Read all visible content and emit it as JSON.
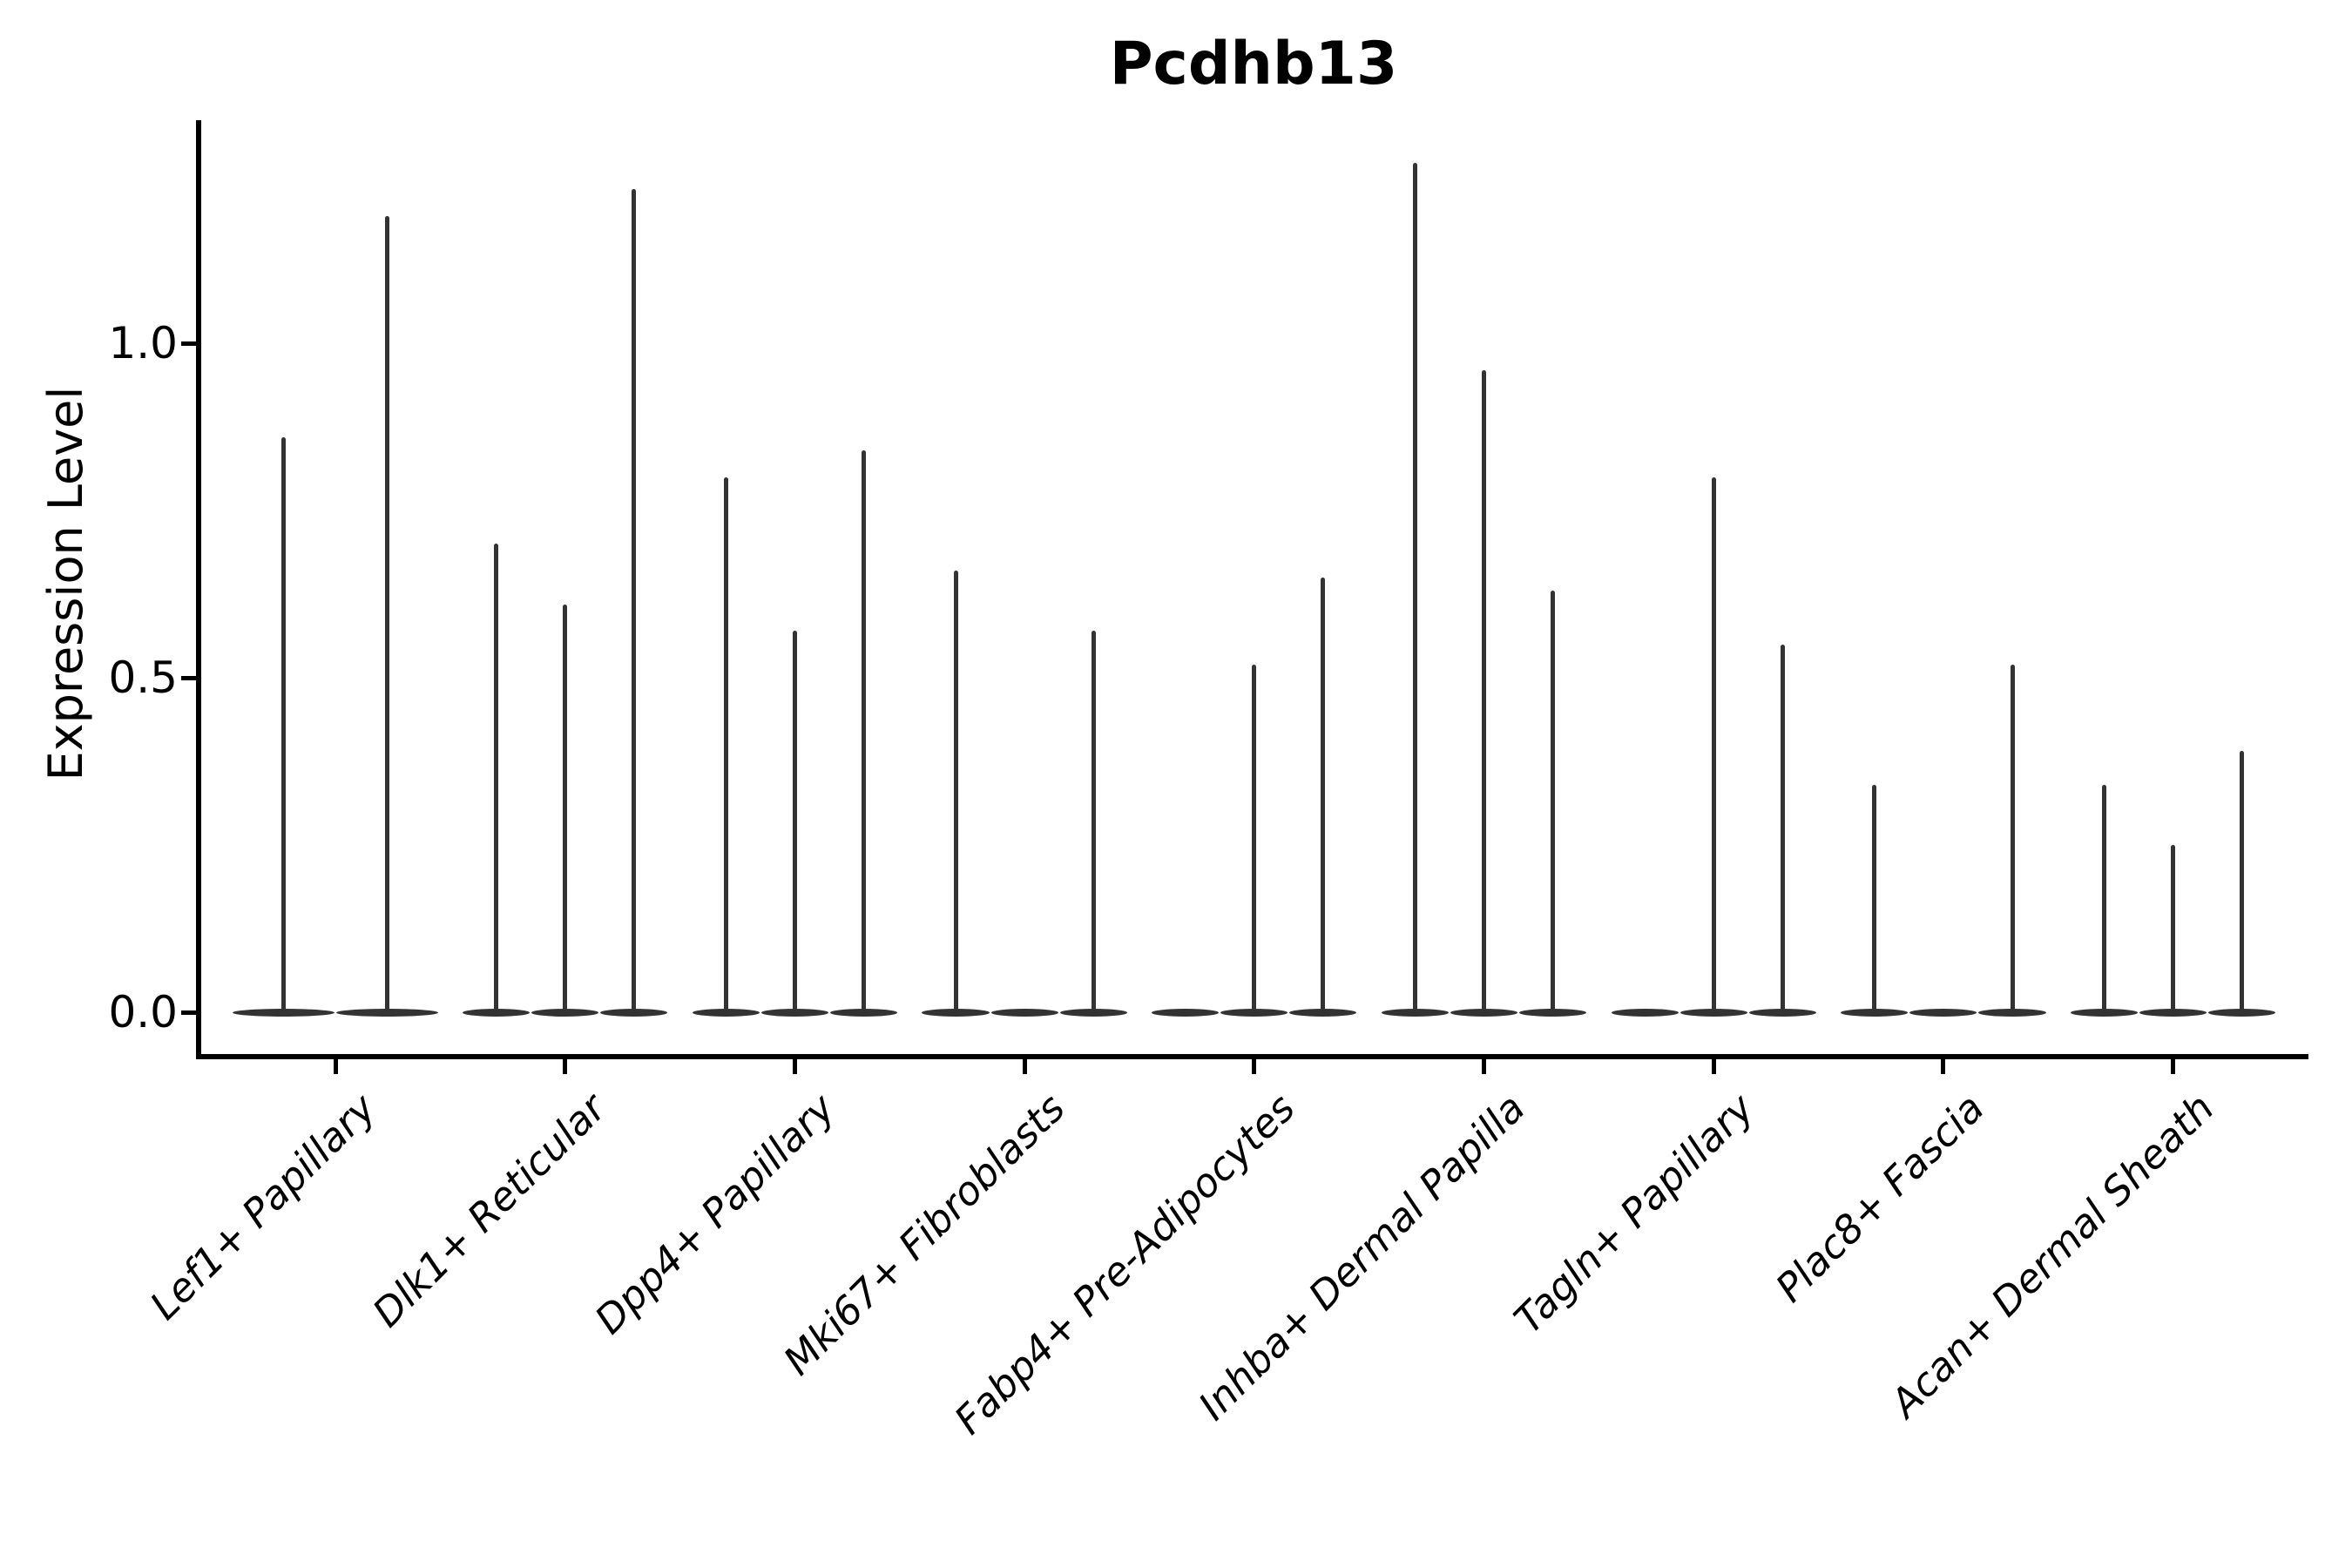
{
  "colors": {
    "background": "#ffffff",
    "axis": "#000000",
    "text": "#000000",
    "violin": "#333333"
  },
  "chart_data": {
    "type": "violin",
    "title": "Pcdhb13",
    "ylabel": "Expression Level",
    "xlabel": "",
    "grid": false,
    "legend_position": "none",
    "ylim": [
      -0.06,
      1.33
    ],
    "ytick_values": [
      0.0,
      0.5,
      1.0
    ],
    "ytick_labels": [
      "0.0",
      "0.5",
      "1.0"
    ],
    "description": "Violin plot of Pcdhb13 expression; each cell-type category contains up to 3 thin violins (flat base at 0 with a narrow spike to the maximum expression value).",
    "categories": [
      {
        "label": "Lef1+ Papillary",
        "n_slots": 2,
        "violins": [
          {
            "slot": 0,
            "max": 0.86
          },
          {
            "slot": 1,
            "max": 1.19
          }
        ]
      },
      {
        "label": "Dlk1+ Reticular",
        "n_slots": 3,
        "violins": [
          {
            "slot": 0,
            "max": 0.7
          },
          {
            "slot": 1,
            "max": 0.61
          },
          {
            "slot": 2,
            "max": 1.23
          }
        ]
      },
      {
        "label": "Dpp4+ Papillary",
        "n_slots": 3,
        "violins": [
          {
            "slot": 0,
            "max": 0.8
          },
          {
            "slot": 1,
            "max": 0.57
          },
          {
            "slot": 2,
            "max": 0.84
          }
        ]
      },
      {
        "label": "Mki67+ Fibroblasts",
        "n_slots": 3,
        "violins": [
          {
            "slot": 0,
            "max": 0.66
          },
          {
            "slot": 1,
            "max": 0.0
          },
          {
            "slot": 2,
            "max": 0.57
          }
        ]
      },
      {
        "label": "Fabp4+ Pre-Adipocytes",
        "n_slots": 3,
        "violins": [
          {
            "slot": 0,
            "max": 0.0
          },
          {
            "slot": 1,
            "max": 0.52
          },
          {
            "slot": 2,
            "max": 0.65
          }
        ]
      },
      {
        "label": "Inhba+ Dermal Papilla",
        "n_slots": 3,
        "violins": [
          {
            "slot": 0,
            "max": 1.27
          },
          {
            "slot": 1,
            "max": 0.96
          },
          {
            "slot": 2,
            "max": 0.63
          }
        ]
      },
      {
        "label": "Tagln+ Papillary",
        "n_slots": 3,
        "violins": [
          {
            "slot": 0,
            "max": 0.0
          },
          {
            "slot": 1,
            "max": 0.8
          },
          {
            "slot": 2,
            "max": 0.55
          }
        ]
      },
      {
        "label": "Plac8+ Fascia",
        "n_slots": 3,
        "violins": [
          {
            "slot": 0,
            "max": 0.34
          },
          {
            "slot": 1,
            "max": 0.0
          },
          {
            "slot": 2,
            "max": 0.52
          }
        ]
      },
      {
        "label": "Acan+ Dermal Sheath",
        "n_slots": 3,
        "violins": [
          {
            "slot": 0,
            "max": 0.34
          },
          {
            "slot": 1,
            "max": 0.25
          },
          {
            "slot": 2,
            "max": 0.39
          }
        ]
      }
    ]
  }
}
